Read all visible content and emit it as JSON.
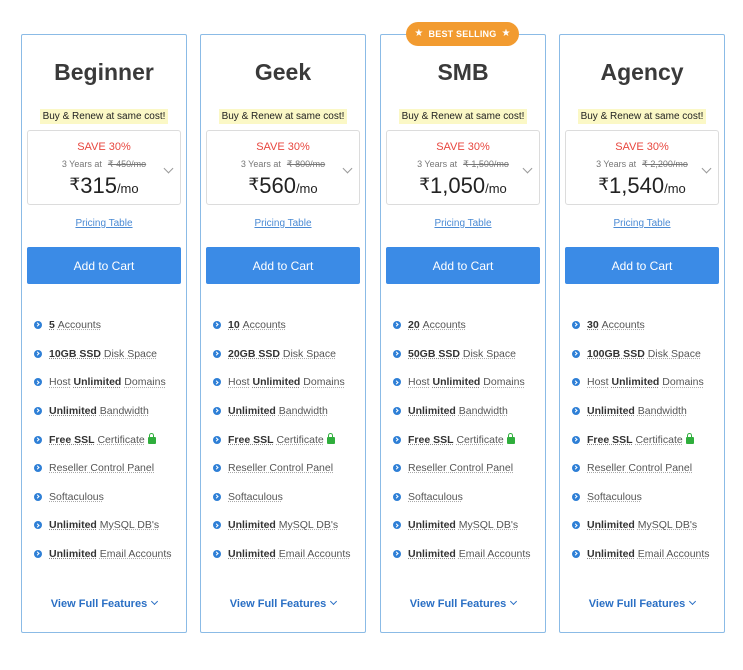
{
  "badge": {
    "label": "BEST SELLING"
  },
  "common": {
    "tagline": "Buy & Renew at same cost!",
    "pricing_link": "Pricing Table",
    "add_to_cart": "Add to Cart",
    "view_full": "View Full Features",
    "years_label": "3 Years at",
    "per": "/mo",
    "currency": "₹"
  },
  "plans": [
    {
      "name": "Beginner",
      "save": "SAVE 30%",
      "old_price": "₹ 450/mo",
      "price": "315",
      "accounts": "5",
      "disk": "10GB SSD"
    },
    {
      "name": "Geek",
      "save": "SAVE 30%",
      "old_price": "₹ 800/mo",
      "price": "560",
      "accounts": "10",
      "disk": "20GB SSD"
    },
    {
      "name": "SMB",
      "save": "SAVE 30%",
      "old_price": "₹ 1,500/mo",
      "price": "1,050",
      "accounts": "20",
      "disk": "50GB SSD"
    },
    {
      "name": "Agency",
      "save": "SAVE 30%",
      "old_price": "₹ 2,200/mo",
      "price": "1,540",
      "accounts": "30",
      "disk": "100GB SSD"
    }
  ],
  "features": {
    "accounts_suffix": "Accounts",
    "disk_suffix": "Disk Space",
    "host_prefix": "Host",
    "unlimited": "Unlimited",
    "domains_suffix": "Domains",
    "bandwidth_suffix": "Bandwidth",
    "free_ssl": "Free SSL",
    "certificate": "Certificate",
    "reseller": "Reseller Control Panel",
    "softaculous": "Softaculous",
    "mysql_suffix": "MySQL DB's",
    "email_suffix": "Email Accounts"
  },
  "colors": {
    "accent": "#3b8be6",
    "badge": "#f29b30",
    "save": "#e8473f",
    "tagline_bg": "#fbf8c6",
    "lock": "#2fae3c"
  }
}
